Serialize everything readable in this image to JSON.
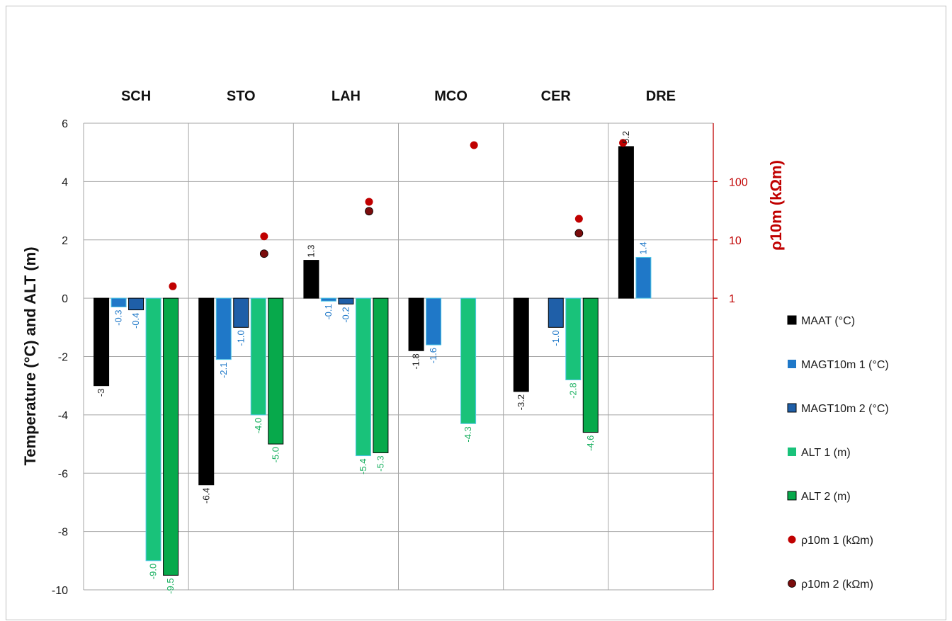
{
  "chart_data": {
    "type": "bar",
    "categories": [
      "SCH",
      "STO",
      "LAH",
      "MCO",
      "CER",
      "DRE"
    ],
    "ylabel": "Temperature (°C) and ALT (m)",
    "y2label": "ρ10m (kΩm)",
    "ylim": [
      -10,
      6
    ],
    "yticks": [
      "6",
      "4",
      "2",
      "0",
      "-2",
      "-4",
      "-6",
      "-8",
      "-10"
    ],
    "y2scale": "log",
    "y2ticks": [
      "100",
      "10",
      "1"
    ],
    "grid": true,
    "legend_position": "right",
    "colors": {
      "MAAT": "#000000",
      "MAGT1": "#1f78c8",
      "MAGT2": "#1f5fa8",
      "ALT1": "#19c27a",
      "ALT2": "#07a94b",
      "RHO1": "#c00000",
      "RHO2": "#7a0c0c",
      "label_black": "#1a1a1a",
      "label_blue": "#1f78c8",
      "label_green": "#19b060",
      "axis_red": "#c00000"
    },
    "series": [
      {
        "name": "MAAT (°C)",
        "key": "MAAT",
        "values": [
          -3,
          -6.4,
          1.3,
          -1.8,
          -3.2,
          5.2
        ],
        "labels": [
          "-3",
          "-6.4",
          "1.3",
          "-1.8",
          "-3.2",
          "5.2"
        ]
      },
      {
        "name": "MAGT10m 1 (°C)",
        "key": "MAGT1",
        "values": [
          -0.3,
          -2.1,
          -0.1,
          -1.6,
          null,
          1.4
        ],
        "labels": [
          "-0.3",
          "-2.1",
          "-0.1",
          "-1.6",
          "",
          "1.4"
        ]
      },
      {
        "name": "MAGT10m 2 (°C)",
        "key": "MAGT2",
        "values": [
          -0.4,
          -1.0,
          -0.2,
          null,
          -1.0,
          null
        ],
        "labels": [
          "-0.4",
          "-1.0",
          "-0.2",
          "",
          "-1.0",
          ""
        ]
      },
      {
        "name": "ALT 1 (m)",
        "key": "ALT1",
        "values": [
          -9.0,
          -4.0,
          -5.4,
          -4.3,
          -2.8,
          null
        ],
        "labels": [
          "-9.0",
          "-4.0",
          "-5.4",
          "-4.3",
          "-2.8",
          ""
        ]
      },
      {
        "name": "ALT 2 (m)",
        "key": "ALT2",
        "values": [
          -9.5,
          -5.0,
          -5.3,
          null,
          -4.6,
          null
        ],
        "labels": [
          "-9.5",
          "-5.0",
          "-5.3",
          "",
          "-4.6",
          ""
        ]
      }
    ],
    "points": [
      {
        "name": "ρ10m 1 (kΩm)",
        "key": "RHO1",
        "values": [
          1.6,
          11.5,
          45,
          420,
          23,
          460
        ]
      },
      {
        "name": "ρ10m 2 (kΩm)",
        "key": "RHO2",
        "values": [
          null,
          5.8,
          31,
          null,
          13,
          null
        ]
      }
    ]
  }
}
